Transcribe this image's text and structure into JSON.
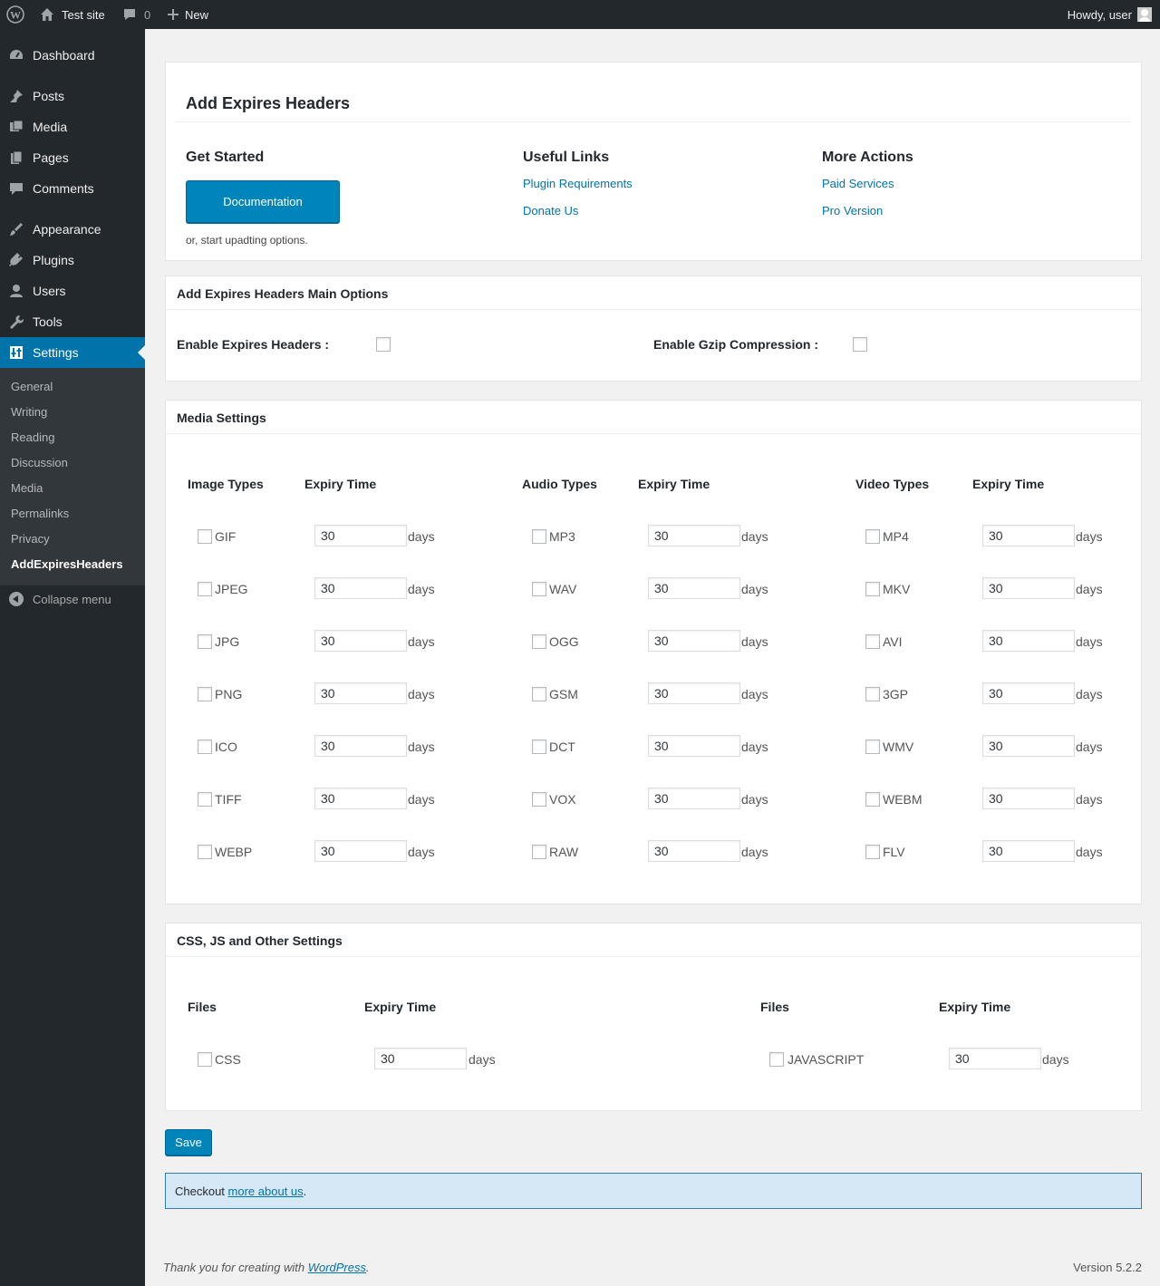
{
  "adminbar": {
    "site_name": "Test site",
    "comments_count": "0",
    "new_label": "New",
    "howdy": "Howdy, user"
  },
  "sidebar": {
    "items": [
      {
        "label": "Dashboard",
        "icon": "dashboard-icon"
      },
      {
        "label": "Posts",
        "icon": "pin-icon"
      },
      {
        "label": "Media",
        "icon": "media-icon"
      },
      {
        "label": "Pages",
        "icon": "pages-icon"
      },
      {
        "label": "Comments",
        "icon": "comments-icon"
      },
      {
        "label": "Appearance",
        "icon": "brush-icon"
      },
      {
        "label": "Plugins",
        "icon": "plug-icon"
      },
      {
        "label": "Users",
        "icon": "user-icon"
      },
      {
        "label": "Tools",
        "icon": "wrench-icon"
      },
      {
        "label": "Settings",
        "icon": "settings-icon"
      }
    ],
    "submenu": [
      "General",
      "Writing",
      "Reading",
      "Discussion",
      "Media",
      "Permalinks",
      "Privacy",
      "AddExpiresHeaders"
    ],
    "collapse": "Collapse menu"
  },
  "intro": {
    "title": "Add Expires Headers",
    "get_started": "Get Started",
    "doc_button": "Documentation",
    "start_text": "or, start upadting options.",
    "useful_links": "Useful Links",
    "link_requirements": "Plugin Requirements",
    "link_donate": "Donate Us",
    "more_actions": "More Actions",
    "link_paid": "Paid Services",
    "link_pro": "Pro Version"
  },
  "main_options": {
    "title": "Add Expires Headers Main Options",
    "enable_expires": "Enable Expires Headers :",
    "enable_gzip": "Enable Gzip Compression :"
  },
  "media": {
    "title": "Media Settings",
    "image_head": "Image Types",
    "audio_head": "Audio Types",
    "video_head": "Video Types",
    "expiry_head": "Expiry Time",
    "days": "days",
    "image": [
      "GIF",
      "JPEG",
      "JPG",
      "PNG",
      "ICO",
      "TIFF",
      "WEBP"
    ],
    "audio": [
      "MP3",
      "WAV",
      "OGG",
      "GSM",
      "DCT",
      "VOX",
      "RAW"
    ],
    "video": [
      "MP4",
      "MKV",
      "AVI",
      "3GP",
      "WMV",
      "WEBM",
      "FLV"
    ],
    "value": "30"
  },
  "other": {
    "title": "CSS, JS and Other Settings",
    "files_head": "Files",
    "expiry_head": "Expiry Time",
    "css": "CSS",
    "js": "JAVASCRIPT",
    "value": "30",
    "days": "days"
  },
  "save_label": "Save",
  "notice": {
    "prefix": "Checkout ",
    "link": "more about us",
    "suffix": "."
  },
  "footer": {
    "prefix": "Thank you for creating with ",
    "link": "WordPress",
    "suffix": ".",
    "version": "Version 5.2.2"
  }
}
